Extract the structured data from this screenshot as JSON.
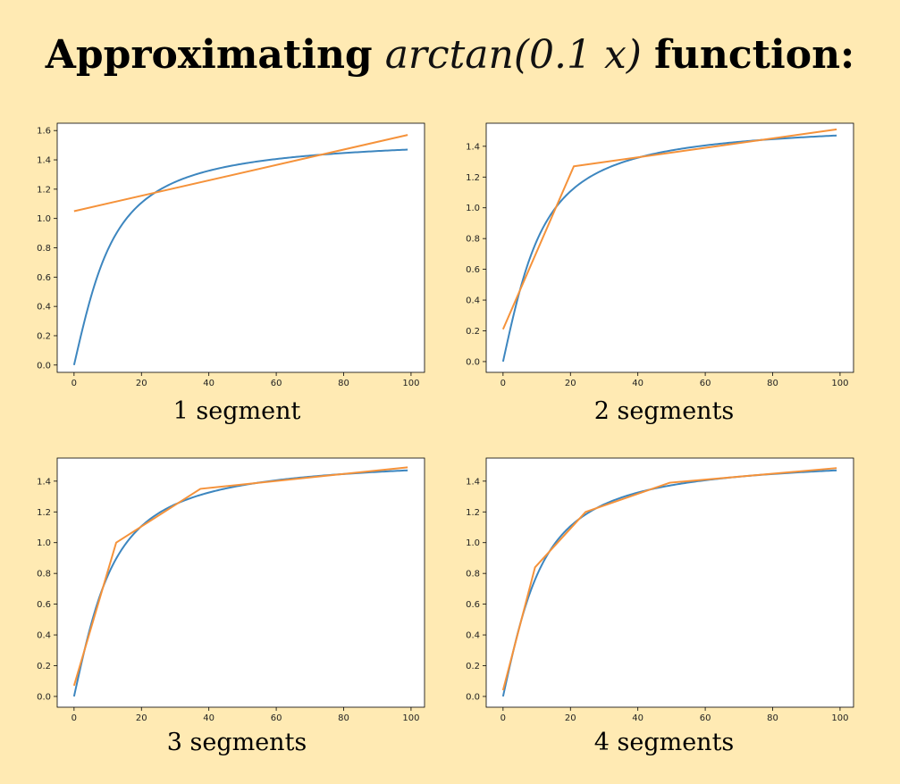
{
  "title": {
    "bold_left": "Approximating",
    "italic": "arctan(0.1 x)",
    "bold_right": "function:"
  },
  "colors": {
    "background": "#ffeab3",
    "true_function": "#3d86bf",
    "approximation": "#f5923a"
  },
  "chart_data": [
    {
      "type": "line",
      "caption": "1 segment",
      "xlim": [
        -5,
        104
      ],
      "ylim": [
        -0.05,
        1.65
      ],
      "xticks": [
        0,
        20,
        40,
        60,
        80,
        100
      ],
      "xtick_labels": [
        "0",
        "20",
        "40",
        "60",
        "80",
        "100"
      ],
      "yticks": [
        0,
        0.2,
        0.4,
        0.6,
        0.8,
        1.0,
        1.2,
        1.4,
        1.6
      ],
      "ytick_labels": [
        "0.0",
        "0.2",
        "0.4",
        "0.6",
        "0.8",
        "1.0",
        "1.2",
        "1.4",
        "1.6"
      ],
      "series": [
        {
          "function": "arctan(0.1x)",
          "color": "#3d86bf",
          "x_range": [
            0,
            99
          ]
        },
        {
          "color": "#f5923a",
          "x": [
            0,
            99
          ],
          "y": [
            1.05,
            1.57
          ]
        }
      ]
    },
    {
      "type": "line",
      "caption": "2 segments",
      "xlim": [
        -5,
        104
      ],
      "ylim": [
        -0.07,
        1.55
      ],
      "xticks": [
        0,
        20,
        40,
        60,
        80,
        100
      ],
      "xtick_labels": [
        "0",
        "20",
        "40",
        "60",
        "80",
        "100"
      ],
      "yticks": [
        0,
        0.2,
        0.4,
        0.6,
        0.8,
        1.0,
        1.2,
        1.4
      ],
      "ytick_labels": [
        "0.0",
        "0.2",
        "0.4",
        "0.6",
        "0.8",
        "1.0",
        "1.2",
        "1.4"
      ],
      "series": [
        {
          "function": "arctan(0.1x)",
          "color": "#3d86bf",
          "x_range": [
            0,
            99
          ]
        },
        {
          "color": "#f5923a",
          "x": [
            0,
            21,
            99
          ],
          "y": [
            0.21,
            1.27,
            1.51
          ]
        }
      ]
    },
    {
      "type": "line",
      "caption": "3 segments",
      "xlim": [
        -5,
        104
      ],
      "ylim": [
        -0.07,
        1.55
      ],
      "xticks": [
        0,
        20,
        40,
        60,
        80,
        100
      ],
      "xtick_labels": [
        "0",
        "20",
        "40",
        "60",
        "80",
        "100"
      ],
      "yticks": [
        0,
        0.2,
        0.4,
        0.6,
        0.8,
        1.0,
        1.2,
        1.4
      ],
      "ytick_labels": [
        "0.0",
        "0.2",
        "0.4",
        "0.6",
        "0.8",
        "1.0",
        "1.2",
        "1.4"
      ],
      "series": [
        {
          "function": "arctan(0.1x)",
          "color": "#3d86bf",
          "x_range": [
            0,
            99
          ]
        },
        {
          "color": "#f5923a",
          "x": [
            0,
            12.5,
            37.5,
            99
          ],
          "y": [
            0.07,
            1.0,
            1.35,
            1.49
          ]
        }
      ]
    },
    {
      "type": "line",
      "caption": "4 segments",
      "xlim": [
        -5,
        104
      ],
      "ylim": [
        -0.07,
        1.55
      ],
      "xticks": [
        0,
        20,
        40,
        60,
        80,
        100
      ],
      "xtick_labels": [
        "0",
        "20",
        "40",
        "60",
        "80",
        "100"
      ],
      "yticks": [
        0,
        0.2,
        0.4,
        0.6,
        0.8,
        1.0,
        1.2,
        1.4
      ],
      "ytick_labels": [
        "0.0",
        "0.2",
        "0.4",
        "0.6",
        "0.8",
        "1.0",
        "1.2",
        "1.4"
      ],
      "series": [
        {
          "function": "arctan(0.1x)",
          "color": "#3d86bf",
          "x_range": [
            0,
            99
          ]
        },
        {
          "color": "#f5923a",
          "x": [
            0,
            9.5,
            24.5,
            49.5,
            99
          ],
          "y": [
            0.04,
            0.84,
            1.2,
            1.39,
            1.485
          ]
        }
      ]
    }
  ]
}
